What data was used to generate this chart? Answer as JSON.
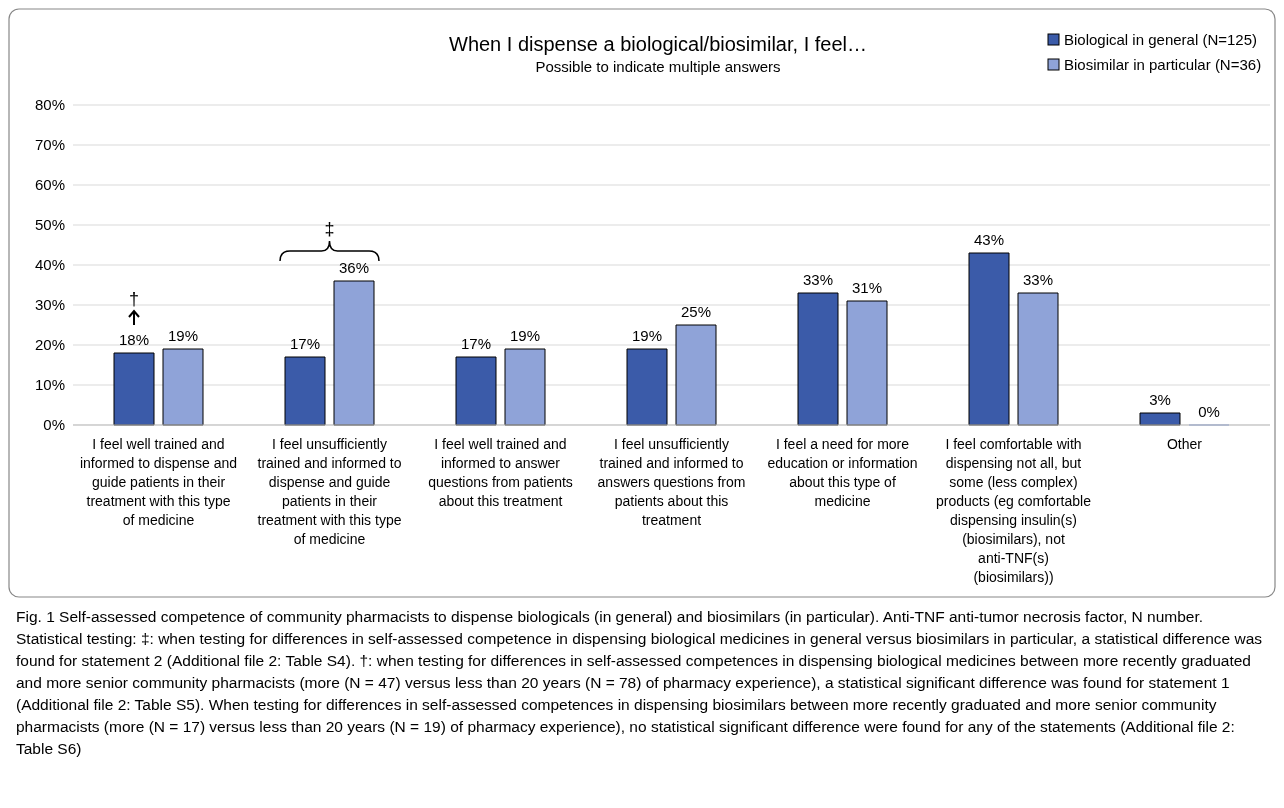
{
  "chart_data": {
    "type": "bar",
    "title": "When I dispense  a biological/biosimilar, I feel…",
    "subtitle": "Possible to indicate multiple answers",
    "categories": [
      "I feel well trained and informed to dispense and guide patients in their treatment with this type of medicine",
      "I feel unsufficiently trained and informed to dispense and guide patients in their treatment with this type of medicine",
      "I feel well trained and informed to answer questions from patients about this treatment",
      "I feel unsufficiently trained and informed to answers questions from patients about this treatment",
      "I feel a need for more education or information about this type of medicine",
      "I feel comfortable with dispensing not all, but some (less complex) products (eg comfortable dispensing insulin(s) (biosimilars), not anti-TNF(s) (biosimilars))",
      "Other"
    ],
    "series": [
      {
        "name": "Biological in general (N=125)",
        "color": "#3b5ba9",
        "values": [
          18,
          17,
          17,
          19,
          33,
          43,
          3
        ],
        "value_labels": [
          "18%",
          "17%",
          "17%",
          "19%",
          "33%",
          "43%",
          "3%"
        ]
      },
      {
        "name": "Biosimilar in particular (N=36)",
        "color": "#8fa3d8",
        "values": [
          19,
          36,
          19,
          25,
          31,
          33,
          0
        ],
        "value_labels": [
          "19%",
          "36%",
          "19%",
          "25%",
          "31%",
          "33%",
          "0%"
        ]
      }
    ],
    "ylim": [
      0,
      80
    ],
    "yticks": [
      {
        "value": 0,
        "label": "0%"
      },
      {
        "value": 10,
        "label": "10%"
      },
      {
        "value": 20,
        "label": "20%"
      },
      {
        "value": 30,
        "label": "30%"
      },
      {
        "value": 40,
        "label": "40%"
      },
      {
        "value": 50,
        "label": "50%"
      },
      {
        "value": 60,
        "label": "60%"
      },
      {
        "value": 70,
        "label": "70%"
      },
      {
        "value": 80,
        "label": "80%"
      }
    ],
    "grid": "y",
    "legend": "top right",
    "annotations": [
      {
        "text": "†",
        "x": "I feel well trained and informed to dispense and guide patients in their treatment with this type of medicine",
        "y": 18
      },
      {
        "text": "‡",
        "x": "I feel unsufficiently trained and informed to dispense and guide patients in their treatment with this type of medicine",
        "y": 36
      },
      "Fig. 1  Self-assessed competence of community pharmacists to dispense biologicals (in general) and biosimilars (in particular). Anti-TNF anti-tumor necrosis factor, N number. Statistical testing: ‡: when testing for differences in self-assessed competence in dispensing biological medicines in general versus biosimilars in particular, a statistical difference was found for statement 2 (Additional file 2: Table S4). †: when testing for differences in self-assessed competences in dispensing biological medicines between more recently graduated and more senior community pharmacists (more (N = 47) versus less than 20 years (N = 78) of pharmacy experience), a statistical significant difference was found for statement 1 (Additional file 2: Table S5). When testing for differences in self-assessed competences in dispensing biosimilars between more recently graduated and more senior community pharmacists (more (N = 17) versus less than 20 years (N = 19) of pharmacy experience), no statistical significant difference were found for any of the statements (Additional file 2: Table S6)"
    ]
  }
}
